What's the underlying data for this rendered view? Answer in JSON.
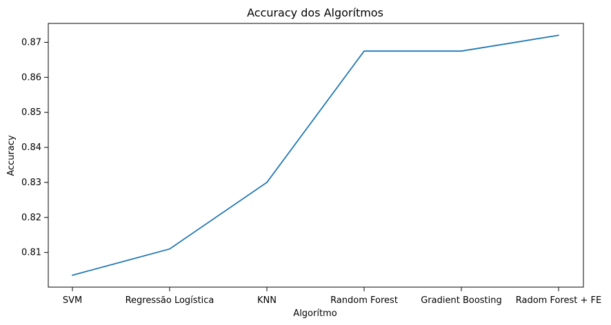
{
  "chart_data": {
    "type": "line",
    "title": "Accuracy dos Algorítmos",
    "xlabel": "Algorítmo",
    "ylabel": "Accuracy",
    "categories": [
      "SVM",
      "Regressão Logística",
      "KNN",
      "Random Forest",
      "Gradient Boosting",
      "Radom Forest + FE"
    ],
    "series": [
      {
        "values": [
          0.8035,
          0.811,
          0.83,
          0.8675,
          0.8675,
          0.872
        ],
        "color": "#1f77b4"
      }
    ],
    "yticks": [
      "0.81",
      "0.82",
      "0.83",
      "0.84",
      "0.85",
      "0.86",
      "0.87"
    ],
    "ylim": [
      0.8001,
      0.8754
    ],
    "grid": false,
    "legend": false
  }
}
